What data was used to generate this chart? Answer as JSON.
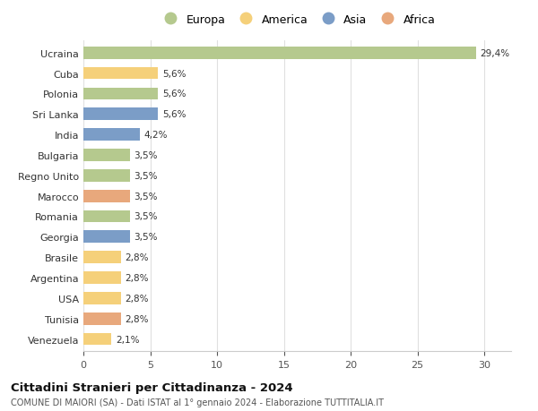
{
  "countries": [
    "Venezuela",
    "Tunisia",
    "USA",
    "Argentina",
    "Brasile",
    "Georgia",
    "Romania",
    "Marocco",
    "Regno Unito",
    "Bulgaria",
    "India",
    "Sri Lanka",
    "Polonia",
    "Cuba",
    "Ucraina"
  ],
  "values": [
    2.1,
    2.8,
    2.8,
    2.8,
    2.8,
    3.5,
    3.5,
    3.5,
    3.5,
    3.5,
    4.2,
    5.6,
    5.6,
    5.6,
    29.4
  ],
  "labels": [
    "2,1%",
    "2,8%",
    "2,8%",
    "2,8%",
    "2,8%",
    "3,5%",
    "3,5%",
    "3,5%",
    "3,5%",
    "3,5%",
    "4,2%",
    "5,6%",
    "5,6%",
    "5,6%",
    "29,4%"
  ],
  "continents": [
    "America",
    "Africa",
    "America",
    "America",
    "America",
    "Asia",
    "Europa",
    "Africa",
    "Europa",
    "Europa",
    "Asia",
    "Asia",
    "Europa",
    "America",
    "Europa"
  ],
  "continent_colors": {
    "Europa": "#b5c98e",
    "America": "#f5d07a",
    "Asia": "#7b9dc7",
    "Africa": "#e8a87c"
  },
  "legend_order": [
    "Europa",
    "America",
    "Asia",
    "Africa"
  ],
  "title": "Cittadini Stranieri per Cittadinanza - 2024",
  "subtitle": "COMUNE DI MAIORI (SA) - Dati ISTAT al 1° gennaio 2024 - Elaborazione TUTTITALIA.IT",
  "xlim": [
    0,
    32
  ],
  "xticks": [
    0,
    5,
    10,
    15,
    20,
    25,
    30
  ],
  "background_color": "#ffffff",
  "grid_color": "#e0e0e0",
  "bar_height": 0.6
}
